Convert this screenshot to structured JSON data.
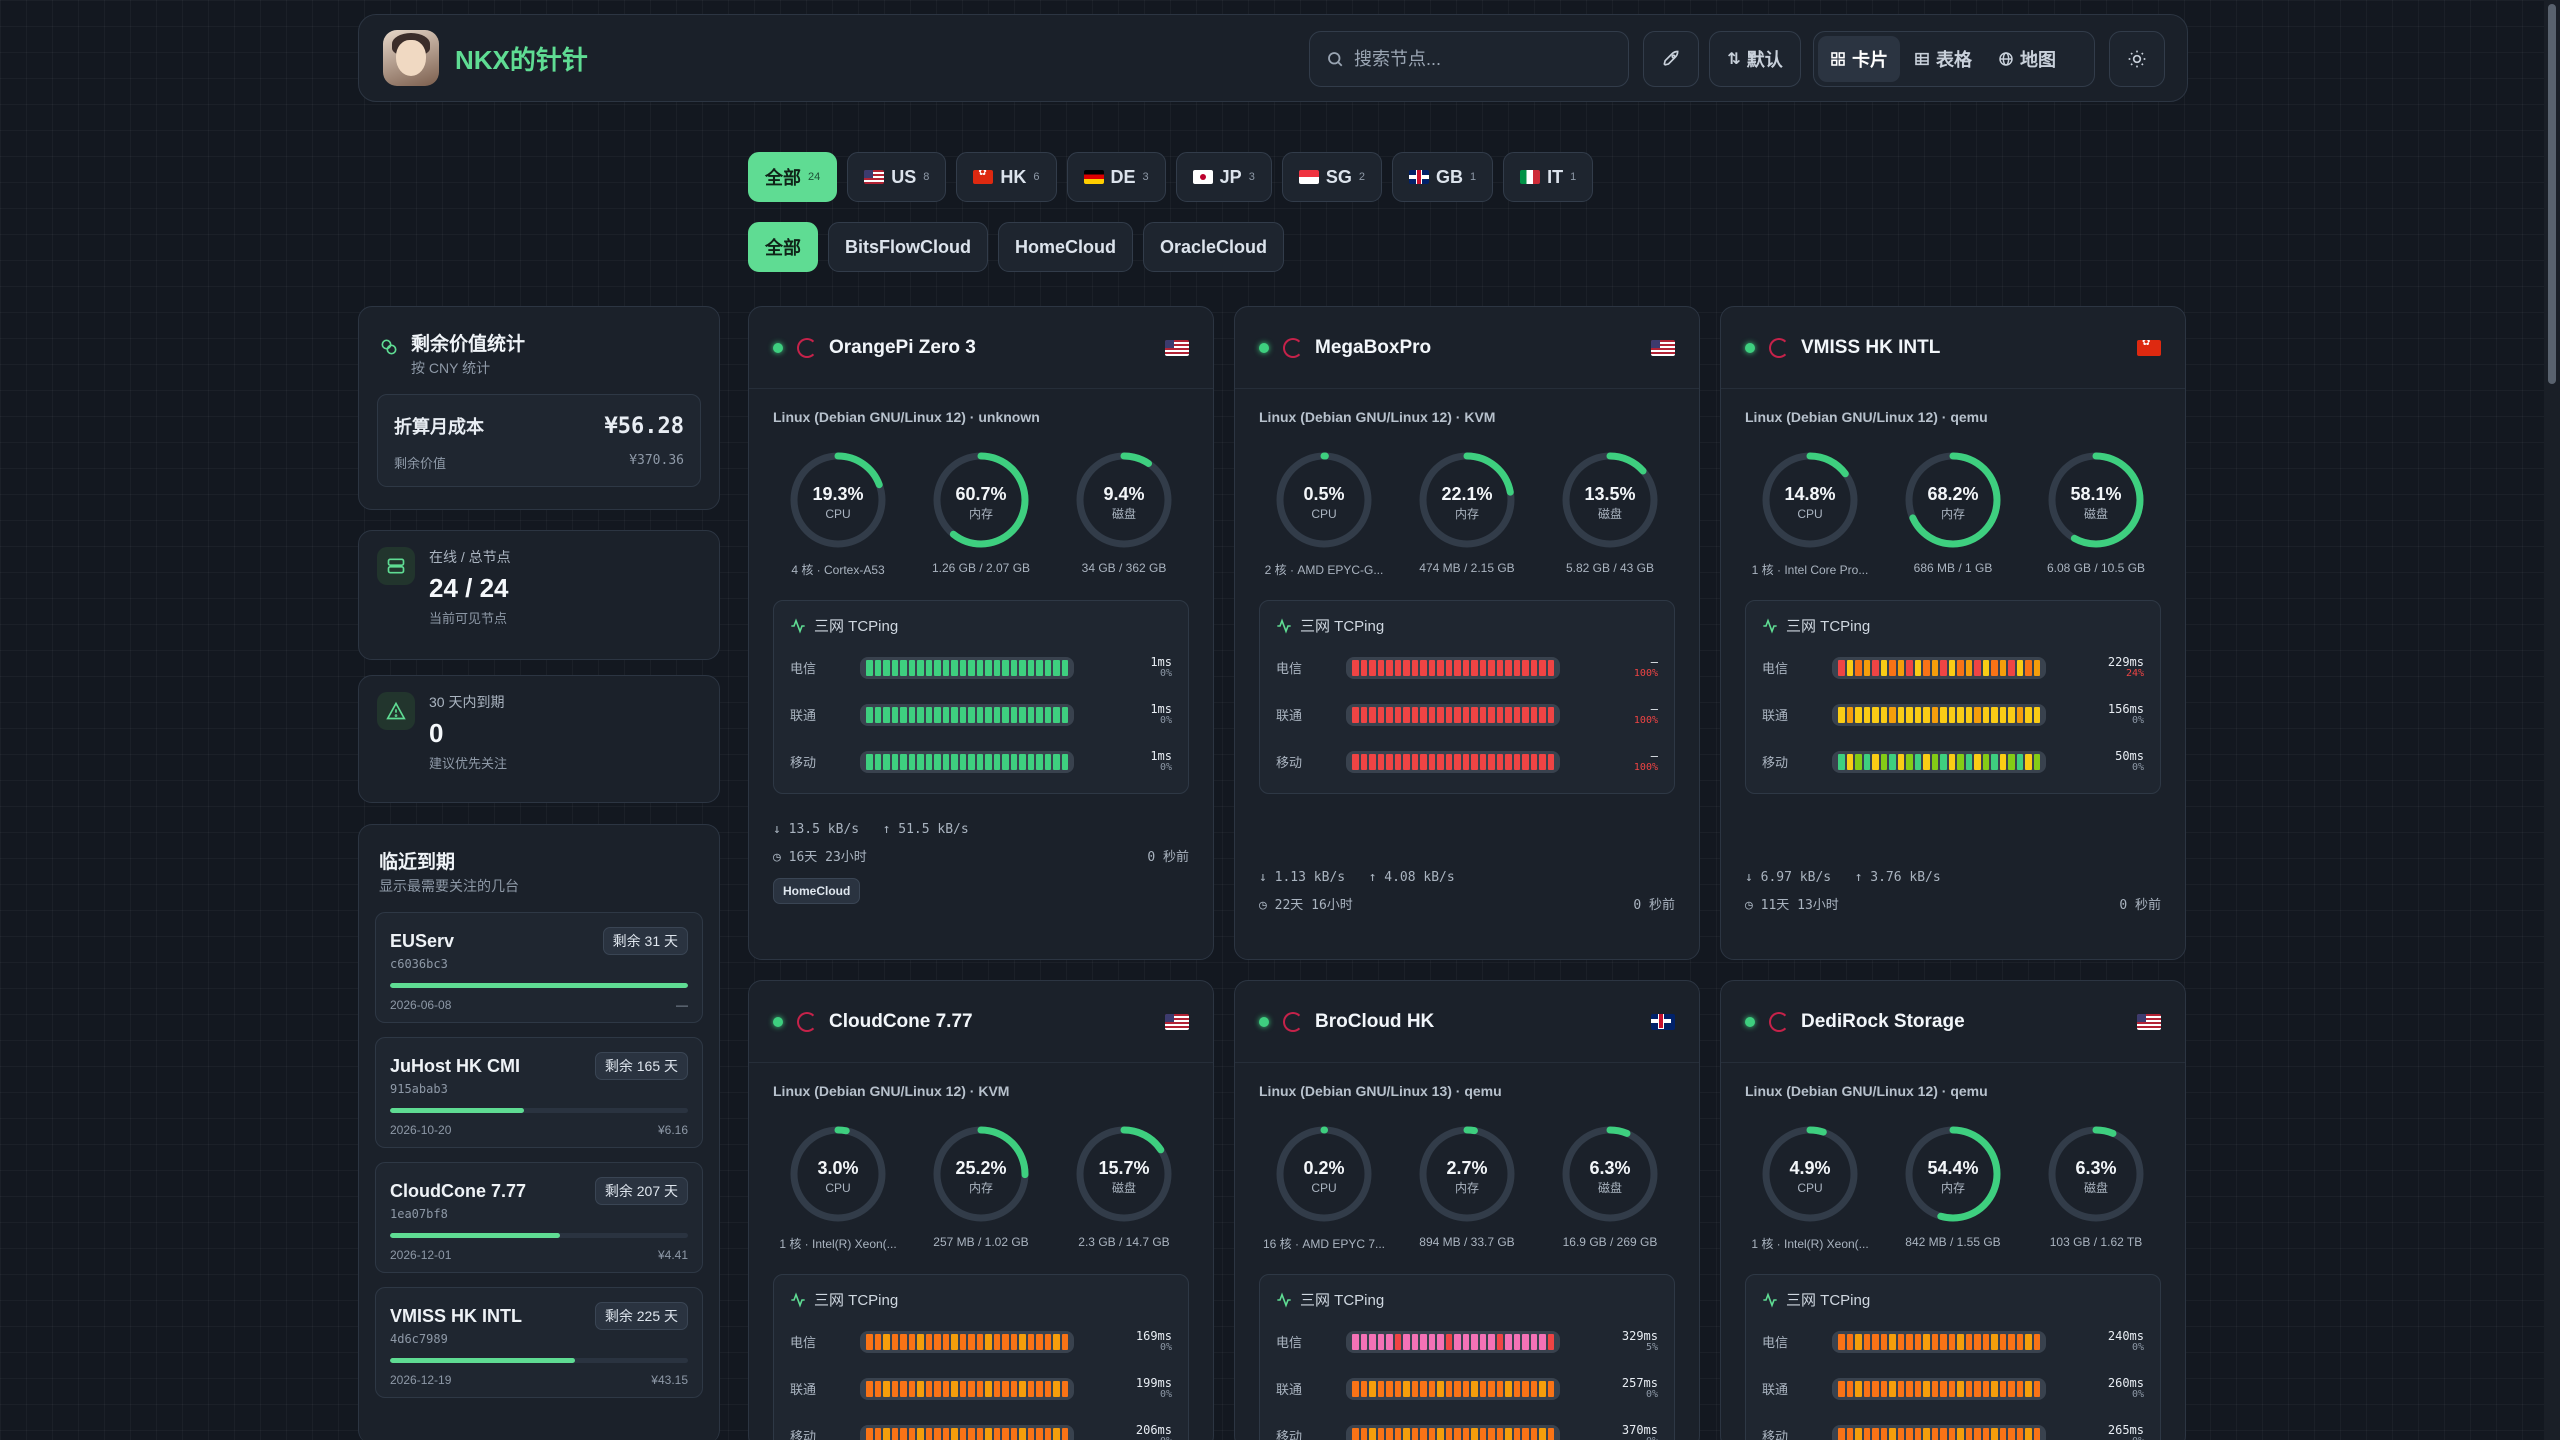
{
  "header": {
    "site_name": "NKX的针针",
    "search_placeholder": "搜索节点...",
    "sort_label": "默认",
    "views": [
      {
        "label": "卡片",
        "active": true
      },
      {
        "label": "表格",
        "active": false
      },
      {
        "label": "地图",
        "active": false
      }
    ]
  },
  "regions": [
    {
      "label": "全部",
      "count": "24",
      "flag": "",
      "active": true
    },
    {
      "label": "US",
      "count": "8",
      "flag": "us"
    },
    {
      "label": "HK",
      "count": "6",
      "flag": "hk"
    },
    {
      "label": "DE",
      "count": "3",
      "flag": "de"
    },
    {
      "label": "JP",
      "count": "3",
      "flag": "jp"
    },
    {
      "label": "SG",
      "count": "2",
      "flag": "sg"
    },
    {
      "label": "GB",
      "count": "1",
      "flag": "gb"
    },
    {
      "label": "IT",
      "count": "1",
      "flag": "it"
    }
  ],
  "groups": [
    {
      "label": "全部",
      "active": true
    },
    {
      "label": "BitsFlowCloud"
    },
    {
      "label": "HomeCloud"
    },
    {
      "label": "OracleCloud"
    }
  ],
  "value_stats": {
    "title": "剩余价值统计",
    "subtitle": "按 CNY 统计",
    "monthly_label": "折算月成本",
    "monthly_value": "¥56.28",
    "remaining_label": "剩余价值",
    "remaining_value": "¥370.36"
  },
  "online": {
    "label": "在线 / 总节点",
    "value": "24 / 24",
    "desc": "当前可见节点"
  },
  "expiring": {
    "label": "30 天内到期",
    "value": "0",
    "desc": "建议优先关注"
  },
  "upcoming": {
    "title": "临近到期",
    "subtitle": "显示最需要关注的几台",
    "items": [
      {
        "name": "EUServ",
        "id": "c6036bc3",
        "badge": "剩余 31 天",
        "progress": 1.0,
        "date": "2026-06-08",
        "price": "—"
      },
      {
        "name": "JuHost HK CMI",
        "id": "915abab3",
        "badge": "剩余 165 天",
        "progress": 0.45,
        "date": "2026-10-20",
        "price": "¥6.16"
      },
      {
        "name": "CloudCone 7.77",
        "id": "1ea07bf8",
        "badge": "剩余 207 天",
        "progress": 0.57,
        "date": "2026-12-01",
        "price": "¥4.41"
      },
      {
        "name": "VMISS HK INTL",
        "id": "4d6c7989",
        "badge": "剩余 225 天",
        "progress": 0.62,
        "date": "2026-12-19",
        "price": "¥43.15"
      }
    ]
  },
  "tcping_title": "三网 TCPing",
  "gauge_labels": {
    "cpu": "CPU",
    "mem": "内存",
    "disk": "磁盘"
  },
  "colors": {
    "accent": "#5fdc93",
    "green": "#3ecf7f",
    "red": "#ef4444",
    "orange": "#f59e0b",
    "yellow": "#facc15"
  },
  "nodes": [
    {
      "name": "OrangePi Zero 3",
      "flag": "us",
      "os": "Linux (Debian GNU/Linux 12) · unknown",
      "cpu": 19.3,
      "mem": 60.7,
      "disk": 9.4,
      "cpu_text": "19.3%",
      "mem_text": "60.7%",
      "disk_text": "9.4%",
      "cpu_sub": "4 核 · Cortex-A53",
      "mem_sub": "1.26 GB / 2.07 GB",
      "disk_sub": "34 GB / 362 GB",
      "ping": [
        {
          "isp": "电信",
          "ms": "1ms",
          "loss": "0%",
          "bad": false,
          "colors": "g"
        },
        {
          "isp": "联通",
          "ms": "1ms",
          "loss": "0%",
          "bad": false,
          "colors": "g"
        },
        {
          "isp": "移动",
          "ms": "1ms",
          "loss": "0%",
          "bad": false,
          "colors": "g"
        }
      ],
      "down": "13.5 kB/s",
      "up": "51.5 kB/s",
      "uptime": "16天 23小时",
      "last": "0 秒前",
      "tag": "HomeCloud"
    },
    {
      "name": "MegaBoxPro",
      "flag": "us",
      "os": "Linux (Debian GNU/Linux 12) · KVM",
      "cpu": 0.5,
      "mem": 22.1,
      "disk": 13.5,
      "cpu_text": "0.5%",
      "mem_text": "22.1%",
      "disk_text": "13.5%",
      "cpu_sub": "2 核 · AMD EPYC-G...",
      "mem_sub": "474 MB / 2.15 GB",
      "disk_sub": "5.82 GB / 43 GB",
      "ping": [
        {
          "isp": "电信",
          "ms": "—",
          "loss": "100%",
          "bad": true,
          "colors": "r"
        },
        {
          "isp": "联通",
          "ms": "—",
          "loss": "100%",
          "bad": true,
          "colors": "r"
        },
        {
          "isp": "移动",
          "ms": "—",
          "loss": "100%",
          "bad": true,
          "colors": "r"
        }
      ],
      "down": "1.13 kB/s",
      "up": "4.08 kB/s",
      "uptime": "22天 16小时",
      "last": "0 秒前",
      "tag": ""
    },
    {
      "name": "VMISS HK INTL",
      "flag": "hk",
      "os": "Linux (Debian GNU/Linux 12) · qemu",
      "cpu": 14.8,
      "mem": 68.2,
      "disk": 58.1,
      "cpu_text": "14.8%",
      "mem_text": "68.2%",
      "disk_text": "58.1%",
      "cpu_sub": "1 核 · Intel Core Pro...",
      "mem_sub": "686 MB / 1 GB",
      "disk_sub": "6.08 GB / 10.5 GB",
      "ping": [
        {
          "isp": "电信",
          "ms": "229ms",
          "loss": "24%",
          "bad": true,
          "colors": "om"
        },
        {
          "isp": "联通",
          "ms": "156ms",
          "loss": "0%",
          "bad": false,
          "colors": "y"
        },
        {
          "isp": "移动",
          "ms": "50ms",
          "loss": "0%",
          "bad": false,
          "colors": "gy"
        }
      ],
      "down": "6.97 kB/s",
      "up": "3.76 kB/s",
      "uptime": "11天 13小时",
      "last": "0 秒前",
      "tag": ""
    },
    {
      "name": "CloudCone 7.77",
      "flag": "us",
      "os": "Linux (Debian GNU/Linux 12) · KVM",
      "cpu": 3.0,
      "mem": 25.2,
      "disk": 15.7,
      "cpu_text": "3.0%",
      "mem_text": "25.2%",
      "disk_text": "15.7%",
      "cpu_sub": "1 核 · Intel(R) Xeon(...",
      "mem_sub": "257 MB / 1.02 GB",
      "disk_sub": "2.3 GB / 14.7 GB",
      "ping": [
        {
          "isp": "电信",
          "ms": "169ms",
          "loss": "0%",
          "bad": false,
          "colors": "o"
        },
        {
          "isp": "联通",
          "ms": "199ms",
          "loss": "0%",
          "bad": false,
          "colors": "o"
        },
        {
          "isp": "移动",
          "ms": "206ms",
          "loss": "0%",
          "bad": false,
          "colors": "o"
        }
      ],
      "down": "",
      "up": "",
      "uptime": "",
      "last": "",
      "tag": ""
    },
    {
      "name": "BroCloud HK",
      "flag": "gb",
      "os": "Linux (Debian GNU/Linux 13) · qemu",
      "cpu": 0.2,
      "mem": 2.7,
      "disk": 6.3,
      "cpu_text": "0.2%",
      "mem_text": "2.7%",
      "disk_text": "6.3%",
      "cpu_sub": "16 核 · AMD EPYC 7...",
      "mem_sub": "894 MB / 33.7 GB",
      "disk_sub": "16.9 GB / 269 GB",
      "ping": [
        {
          "isp": "电信",
          "ms": "329ms",
          "loss": "5%",
          "bad": false,
          "colors": "p"
        },
        {
          "isp": "联通",
          "ms": "257ms",
          "loss": "0%",
          "bad": false,
          "colors": "o"
        },
        {
          "isp": "移动",
          "ms": "370ms",
          "loss": "0%",
          "bad": false,
          "colors": "o"
        }
      ],
      "down": "",
      "up": "",
      "uptime": "",
      "last": "",
      "tag": ""
    },
    {
      "name": "DediRock Storage",
      "flag": "us",
      "os": "Linux (Debian GNU/Linux 12) · qemu",
      "cpu": 4.9,
      "mem": 54.4,
      "disk": 6.3,
      "cpu_text": "4.9%",
      "mem_text": "54.4%",
      "disk_text": "6.3%",
      "cpu_sub": "1 核 · Intel(R) Xeon(...",
      "mem_sub": "842 MB / 1.55 GB",
      "disk_sub": "103 GB / 1.62 TB",
      "ping": [
        {
          "isp": "电信",
          "ms": "240ms",
          "loss": "0%",
          "bad": false,
          "colors": "o"
        },
        {
          "isp": "联通",
          "ms": "260ms",
          "loss": "0%",
          "bad": false,
          "colors": "o"
        },
        {
          "isp": "移动",
          "ms": "265ms",
          "loss": "0%",
          "bad": false,
          "colors": "o"
        }
      ],
      "down": "",
      "up": "",
      "uptime": "",
      "last": "",
      "tag": ""
    }
  ]
}
